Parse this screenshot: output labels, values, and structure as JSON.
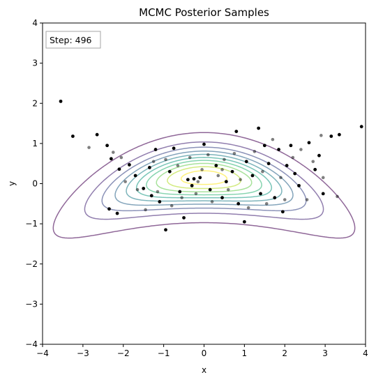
{
  "chart_data": {
    "type": "scatter",
    "title": "MCMC Posterior Samples",
    "xlabel": "x",
    "ylabel": "y",
    "xlim": [
      -4,
      4
    ],
    "ylim": [
      -4,
      4
    ],
    "xticks": [
      -4,
      -3,
      -2,
      -1,
      0,
      1,
      2,
      3,
      4
    ],
    "yticks": [
      -4,
      -3,
      -2,
      -1,
      0,
      1,
      2,
      3,
      4
    ],
    "tick_labels": {
      "x": [
        "−4",
        "−3",
        "−2",
        "−1",
        "0",
        "1",
        "2",
        "3",
        "4"
      ],
      "y": [
        "−4",
        "−3",
        "−2",
        "−1",
        "0",
        "1",
        "2",
        "3",
        "4"
      ]
    },
    "grid": false,
    "annotation": "Step: 496",
    "contours": {
      "colormap": "viridis",
      "count": 10,
      "colors": [
        "#440154",
        "#482878",
        "#3e4989",
        "#31688e",
        "#26828e",
        "#1f9e89",
        "#35b779",
        "#6ece58",
        "#b5de2b",
        "#fde725"
      ],
      "alpha": 0.6
    },
    "samples": {
      "color": "#000000",
      "recent_alpha": 1.0,
      "older_alpha": 0.5,
      "recent_points": [
        [
          -3.55,
          2.05
        ],
        [
          -3.25,
          1.18
        ],
        [
          -2.65,
          1.22
        ],
        [
          -2.4,
          0.95
        ],
        [
          -2.35,
          -0.63
        ],
        [
          -2.15,
          -0.74
        ],
        [
          -2.3,
          0.62
        ],
        [
          -2.1,
          0.36
        ],
        [
          -1.85,
          0.47
        ],
        [
          -1.7,
          0.2
        ],
        [
          -1.5,
          -0.12
        ],
        [
          -1.35,
          0.4
        ],
        [
          -1.3,
          -0.3
        ],
        [
          -1.2,
          0.85
        ],
        [
          -1.1,
          -0.45
        ],
        [
          -0.95,
          -1.15
        ],
        [
          -0.85,
          0.3
        ],
        [
          -0.75,
          0.88
        ],
        [
          -0.6,
          -0.2
        ],
        [
          -0.5,
          -0.85
        ],
        [
          -0.4,
          0.1
        ],
        [
          -0.3,
          -0.05
        ],
        [
          -0.25,
          0.12
        ],
        [
          -0.1,
          0.15
        ],
        [
          0.0,
          0.98
        ],
        [
          0.15,
          -0.15
        ],
        [
          0.3,
          0.45
        ],
        [
          0.45,
          -0.35
        ],
        [
          0.55,
          0.05
        ],
        [
          0.7,
          0.3
        ],
        [
          0.8,
          1.3
        ],
        [
          0.85,
          -0.5
        ],
        [
          1.0,
          -0.95
        ],
        [
          1.05,
          0.55
        ],
        [
          1.2,
          0.2
        ],
        [
          1.35,
          1.38
        ],
        [
          1.4,
          -0.25
        ],
        [
          1.5,
          0.95
        ],
        [
          1.6,
          0.5
        ],
        [
          1.75,
          -0.35
        ],
        [
          1.85,
          0.85
        ],
        [
          1.95,
          -0.7
        ],
        [
          2.05,
          0.45
        ],
        [
          2.15,
          0.95
        ],
        [
          2.25,
          0.25
        ],
        [
          2.35,
          -0.05
        ],
        [
          2.6,
          1.02
        ],
        [
          2.75,
          0.35
        ],
        [
          2.85,
          0.7
        ],
        [
          2.95,
          -0.25
        ],
        [
          3.15,
          1.18
        ],
        [
          3.35,
          1.22
        ],
        [
          3.9,
          1.42
        ]
      ],
      "older_points": [
        [
          -2.85,
          0.9
        ],
        [
          -2.25,
          0.78
        ],
        [
          -2.05,
          0.65
        ],
        [
          -1.95,
          0.05
        ],
        [
          -1.65,
          -0.15
        ],
        [
          -1.45,
          -0.65
        ],
        [
          -1.25,
          0.55
        ],
        [
          -1.15,
          -0.2
        ],
        [
          -0.95,
          0.6
        ],
        [
          -0.8,
          -0.55
        ],
        [
          -0.65,
          0.45
        ],
        [
          -0.55,
          -0.35
        ],
        [
          -0.35,
          0.65
        ],
        [
          -0.2,
          -0.25
        ],
        [
          -0.05,
          0.35
        ],
        [
          0.1,
          0.72
        ],
        [
          0.2,
          -0.45
        ],
        [
          0.35,
          0.2
        ],
        [
          0.5,
          0.6
        ],
        [
          0.6,
          -0.15
        ],
        [
          0.75,
          0.75
        ],
        [
          0.9,
          0.1
        ],
        [
          1.1,
          -0.6
        ],
        [
          1.25,
          0.8
        ],
        [
          1.45,
          0.3
        ],
        [
          1.55,
          -0.5
        ],
        [
          1.7,
          1.1
        ],
        [
          1.9,
          0.15
        ],
        [
          2.0,
          -0.4
        ],
        [
          2.2,
          0.65
        ],
        [
          2.4,
          0.85
        ],
        [
          2.55,
          -0.4
        ],
        [
          2.7,
          0.55
        ],
        [
          2.9,
          1.2
        ],
        [
          2.95,
          0.15
        ],
        [
          3.3,
          -0.32
        ],
        [
          0.45,
          0.35
        ],
        [
          -0.15,
          0.05
        ]
      ]
    }
  }
}
